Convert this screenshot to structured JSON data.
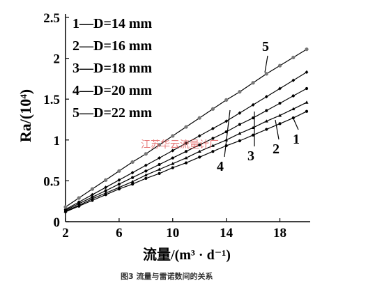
{
  "chart_data": {
    "type": "line",
    "ylabel": "Ra/(10⁴)",
    "xlabel": "流量/(m³ · d⁻¹)",
    "xlim": [
      2,
      20
    ],
    "ylim": [
      0,
      2.5
    ],
    "xticks": [
      "2",
      "6",
      "10",
      "14",
      "18"
    ],
    "yticks": [
      "0",
      "0.5",
      "1",
      "1.5",
      "2",
      "2.5"
    ],
    "legend_position": "top-left",
    "legend": [
      "1—D=14 mm",
      "2—D=16 mm",
      "3—D=18 mm",
      "4—D=20 mm",
      "5—D=22 mm"
    ],
    "series": [
      {
        "name": "1",
        "x": [
          2,
          3,
          4,
          5,
          6,
          7,
          8,
          9,
          10,
          11,
          12,
          13,
          14,
          15,
          16,
          17,
          18,
          19,
          20
        ],
        "y": [
          0.12,
          0.19,
          0.26,
          0.33,
          0.4,
          0.46,
          0.53,
          0.59,
          0.66,
          0.72,
          0.79,
          0.86,
          0.93,
          0.99,
          1.06,
          1.13,
          1.2,
          1.27,
          1.35
        ]
      },
      {
        "name": "2",
        "x": [
          2,
          3,
          4,
          5,
          6,
          7,
          8,
          9,
          10,
          11,
          12,
          13,
          14,
          15,
          16,
          17,
          18,
          19,
          20
        ],
        "y": [
          0.13,
          0.2,
          0.28,
          0.35,
          0.42,
          0.49,
          0.57,
          0.64,
          0.71,
          0.78,
          0.86,
          0.93,
          1.0,
          1.08,
          1.15,
          1.23,
          1.3,
          1.38,
          1.46
        ]
      },
      {
        "name": "3",
        "x": [
          2,
          3,
          4,
          5,
          6,
          7,
          8,
          9,
          10,
          11,
          12,
          13,
          14,
          15,
          16,
          17,
          18,
          19,
          20
        ],
        "y": [
          0.14,
          0.22,
          0.3,
          0.38,
          0.46,
          0.54,
          0.62,
          0.7,
          0.78,
          0.86,
          0.94,
          1.02,
          1.1,
          1.19,
          1.27,
          1.36,
          1.45,
          1.54,
          1.63
        ]
      },
      {
        "name": "4",
        "x": [
          2,
          3,
          4,
          5,
          6,
          7,
          8,
          9,
          10,
          11,
          12,
          13,
          14,
          15,
          16,
          17,
          18,
          19,
          20
        ],
        "y": [
          0.15,
          0.24,
          0.33,
          0.42,
          0.51,
          0.6,
          0.69,
          0.78,
          0.87,
          0.96,
          1.05,
          1.14,
          1.23,
          1.33,
          1.43,
          1.53,
          1.63,
          1.73,
          1.83
        ]
      },
      {
        "name": "5",
        "x": [
          2,
          3,
          4,
          5,
          6,
          7,
          8,
          9,
          10,
          11,
          12,
          13,
          14,
          15,
          16,
          17,
          18,
          19,
          20
        ],
        "y": [
          0.18,
          0.29,
          0.4,
          0.51,
          0.62,
          0.73,
          0.83,
          0.94,
          1.05,
          1.16,
          1.27,
          1.38,
          1.49,
          1.59,
          1.7,
          1.81,
          1.91,
          2.01,
          2.11
        ]
      }
    ],
    "callouts": [
      "1",
      "2",
      "3",
      "4",
      "5"
    ],
    "grid": false
  },
  "caption": "图3 流量与雷诺数间的关系",
  "watermark": "江苏华云流量计厂",
  "colors": {
    "line": "#000000",
    "series_5_marker": "#777777"
  }
}
